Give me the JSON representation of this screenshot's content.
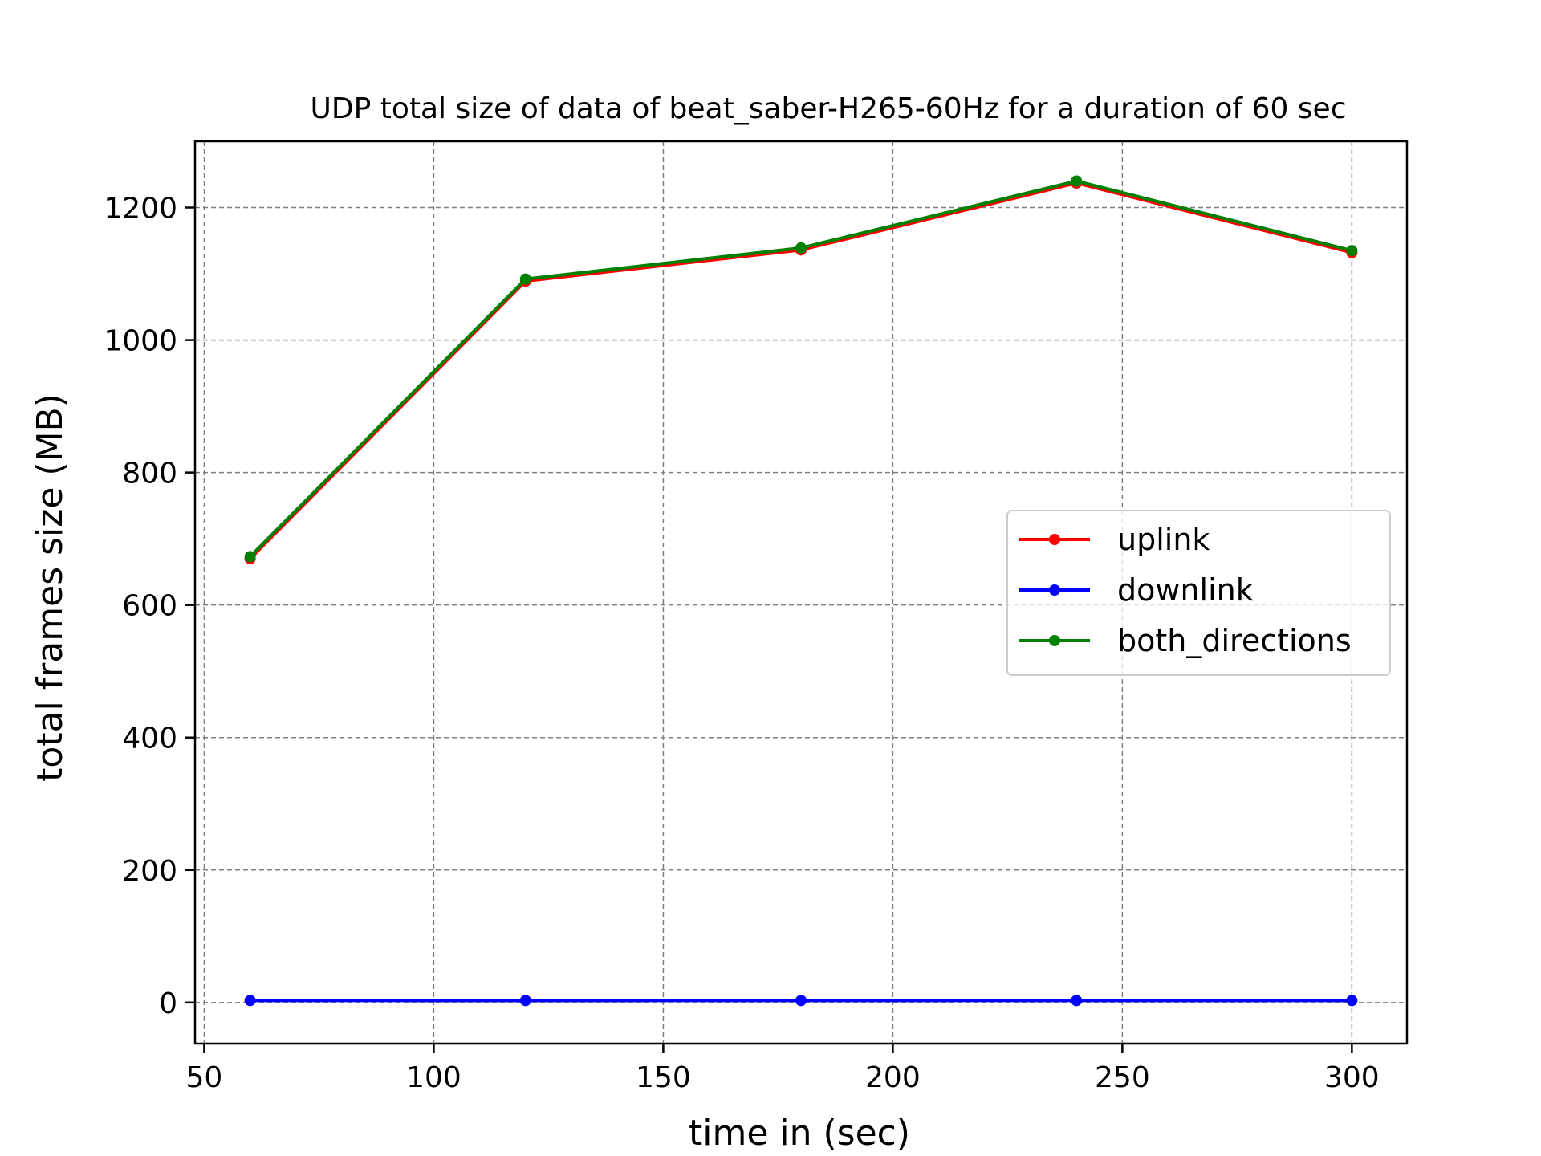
{
  "chart_data": {
    "type": "line",
    "title": "UDP total size of data of beat_saber-H265-60Hz for a duration of 60 sec",
    "xlabel": "time in (sec)",
    "ylabel": "total frames size (MB)",
    "xlim": [
      48,
      312
    ],
    "ylim": [
      -62,
      1300
    ],
    "xticks": [
      50,
      100,
      150,
      200,
      250,
      300
    ],
    "yticks": [
      0,
      200,
      400,
      600,
      800,
      1000,
      1200
    ],
    "grid": true,
    "legend_position": "center-right",
    "x": [
      60,
      120,
      180,
      240,
      300
    ],
    "series": [
      {
        "name": "uplink",
        "color": "#ff0000",
        "values": [
          670,
          1089,
          1136,
          1237,
          1132
        ]
      },
      {
        "name": "downlink",
        "color": "#0000ff",
        "values": [
          3,
          3,
          3,
          3,
          3
        ]
      },
      {
        "name": "both_directions",
        "color": "#008000",
        "values": [
          673,
          1092,
          1139,
          1240,
          1135
        ]
      }
    ]
  }
}
